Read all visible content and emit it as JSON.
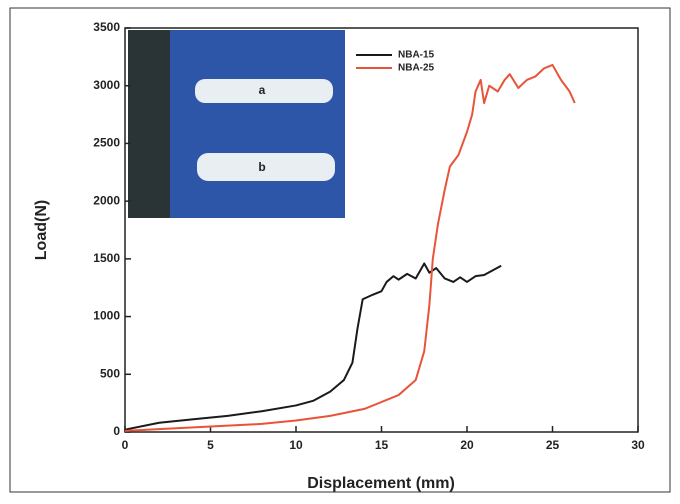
{
  "chart_data": {
    "type": "line",
    "xlabel": "Displacement (mm)",
    "ylabel": "Load(N)",
    "xlim": [
      0,
      30
    ],
    "xticks": [
      0,
      5,
      10,
      15,
      20,
      25,
      30
    ],
    "ylim": [
      0,
      3500
    ],
    "yticks": [
      0,
      500,
      1000,
      1500,
      2000,
      2500,
      3000,
      3500
    ],
    "legend": "upper center",
    "series": [
      {
        "name": "NBA-15",
        "color": "#1a1a1a",
        "x": [
          0,
          2,
          4,
          6,
          8,
          10,
          11,
          12,
          12.8,
          13.3,
          13.6,
          13.9,
          14.5,
          15,
          15.3,
          15.7,
          16,
          16.5,
          17,
          17.5,
          17.8,
          18.2,
          18.7,
          19.2,
          19.6,
          20,
          20.5,
          21,
          21.5,
          22
        ],
        "values": [
          20,
          80,
          110,
          140,
          180,
          230,
          270,
          350,
          450,
          600,
          900,
          1150,
          1190,
          1220,
          1300,
          1350,
          1320,
          1370,
          1330,
          1460,
          1380,
          1420,
          1330,
          1300,
          1340,
          1300,
          1350,
          1360,
          1400,
          1440
        ]
      },
      {
        "name": "NBA-25",
        "color": "#e8543a",
        "x": [
          0,
          4,
          8,
          10,
          12,
          14,
          16,
          17,
          17.5,
          17.8,
          18,
          18.3,
          18.7,
          19,
          19.5,
          20,
          20.3,
          20.5,
          20.8,
          21,
          21.3,
          21.8,
          22.2,
          22.5,
          23,
          23.5,
          24,
          24.5,
          25,
          25.5,
          26,
          26.3
        ],
        "values": [
          10,
          40,
          70,
          100,
          140,
          200,
          320,
          450,
          700,
          1100,
          1500,
          1800,
          2100,
          2300,
          2400,
          2600,
          2750,
          2950,
          3050,
          2850,
          3000,
          2950,
          3050,
          3100,
          2980,
          3050,
          3080,
          3150,
          3180,
          3050,
          2950,
          2850
        ]
      }
    ],
    "inset": {
      "labels": [
        "a",
        "b"
      ]
    }
  }
}
